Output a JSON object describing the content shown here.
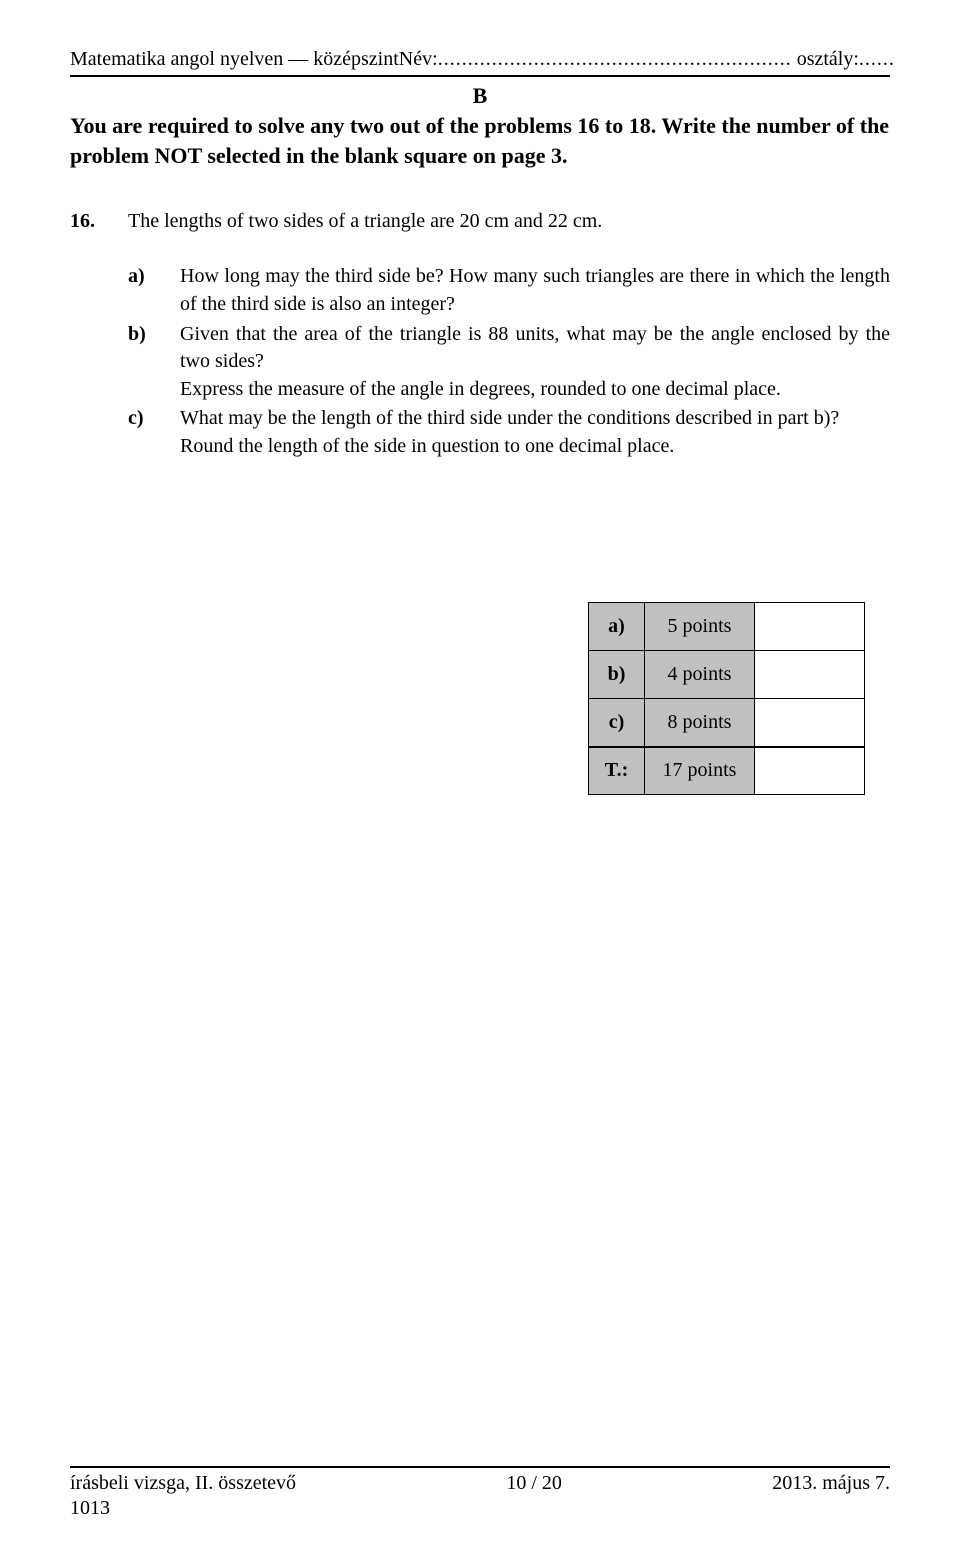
{
  "header": {
    "left": "Matematika angol nyelven — középszint",
    "name_label": "Név:",
    "name_dots": "...........................................................",
    "class_label": "  osztály:",
    "class_dots": "......"
  },
  "section_label": "B",
  "instructions": "You are required to solve any two out of the problems 16 to 18. Write the number of the problem NOT selected in the blank square on page 3.",
  "problem": {
    "number": "16.",
    "text": "The lengths of two sides of a triangle are 20 cm and 22 cm."
  },
  "parts": [
    {
      "label": "a)",
      "text": "How long may the third side be? How many such triangles are there in which the length of the third side is also an integer?"
    },
    {
      "label": "b)",
      "text": "Given that the area of the triangle is 88 units, what may be the angle enclosed by the two sides?\nExpress the measure of the angle in degrees, rounded to one decimal place."
    },
    {
      "label": "c)",
      "text": "What may be the length of the third side under the conditions described in part b)?\nRound the length of the side in question to one decimal place."
    }
  ],
  "points_table": {
    "rows": [
      {
        "label": "a)",
        "points": "5 points"
      },
      {
        "label": "b)",
        "points": "4 points"
      },
      {
        "label": "c)",
        "points": "8 points"
      }
    ],
    "total": {
      "label": "T.:",
      "points": "17 points"
    },
    "colors": {
      "shaded": "#c0c0c0",
      "blank": "#ffffff",
      "border": "#000000"
    }
  },
  "footer": {
    "left": "írásbeli vizsga, II. összetevő",
    "center": "10 / 20",
    "right": "2013. május 7.",
    "code": "1013"
  }
}
